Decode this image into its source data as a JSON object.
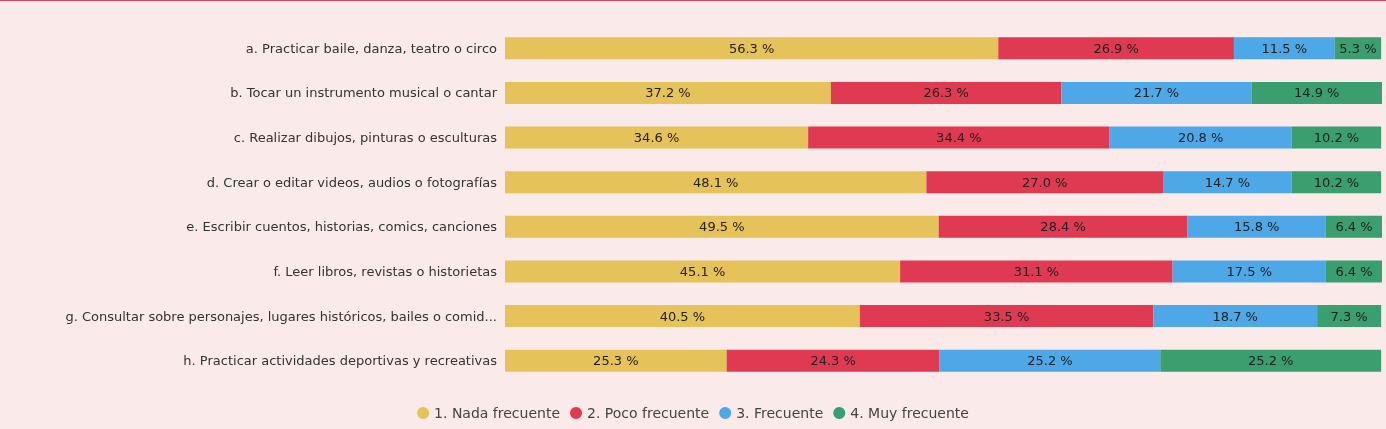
{
  "chart_data": {
    "type": "bar",
    "orientation": "horizontal",
    "stacked": true,
    "legend": "bottom",
    "grid": false,
    "categories": [
      "a. Practicar baile, danza, teatro o circo",
      "b. Tocar un instrumento musical o cantar",
      "c. Realizar dibujos, pinturas o esculturas",
      "d. Crear o editar videos, audios o fotografías",
      "e. Escribir cuentos, historias, comics, canciones",
      "f. Leer libros, revistas o historietas",
      "g. Consultar sobre personajes, lugares históricos, bailes o comid...",
      "h. Practicar actividades deportivas y recreativas"
    ],
    "series": [
      {
        "name": "1. Nada frecuente",
        "color": "#e5c35a",
        "values": [
          56.3,
          37.2,
          34.6,
          48.1,
          49.5,
          45.1,
          40.5,
          25.3
        ],
        "value_labels": [
          "56.3 %",
          "37.2 %",
          "34.6 %",
          "48.1 %",
          "49.5 %",
          "45.1 %",
          "40.5 %",
          "25.3 %"
        ]
      },
      {
        "name": "2. Poco frecuente",
        "color": "#e03a52",
        "values": [
          26.9,
          26.3,
          34.4,
          27.0,
          28.4,
          31.1,
          33.5,
          24.3
        ],
        "value_labels": [
          "26.9 %",
          "26.3 %",
          "34.4 %",
          "27.0 %",
          "28.4 %",
          "31.1 %",
          "33.5 %",
          "24.3 %"
        ]
      },
      {
        "name": "3. Frecuente",
        "color": "#4ea8e8",
        "values": [
          11.5,
          21.7,
          20.8,
          14.7,
          15.8,
          17.5,
          18.7,
          25.2
        ],
        "value_labels": [
          "11.5 %",
          "21.7 %",
          "20.8 %",
          "14.7 %",
          "15.8 %",
          "17.5 %",
          "18.7 %",
          "25.2 %"
        ]
      },
      {
        "name": "4. Muy frecuente",
        "color": "#3a9e6e",
        "values": [
          5.3,
          14.9,
          10.2,
          10.2,
          6.4,
          6.4,
          7.3,
          25.2
        ],
        "value_labels": [
          "5.3 %",
          "14.9 %",
          "10.2 %",
          "10.2 %",
          "6.4 %",
          "6.4 %",
          "7.3 %",
          "25.2 %"
        ]
      }
    ]
  }
}
